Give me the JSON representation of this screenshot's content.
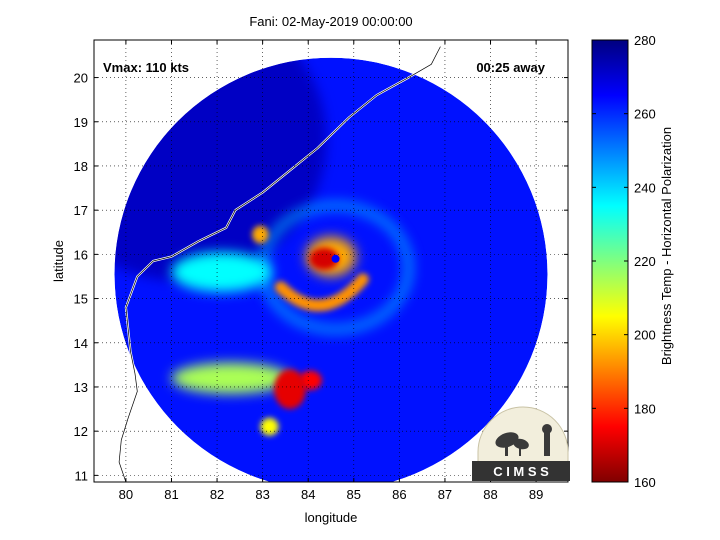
{
  "chart_data": {
    "type": "heatmap",
    "title": "Fani: 02-May-2019 00:00:00",
    "xlabel": "longitude",
    "ylabel": "latitude",
    "xlim": [
      79.3,
      89.7
    ],
    "ylim": [
      10.85,
      20.85
    ],
    "x_ticks": [
      80,
      81,
      82,
      83,
      84,
      85,
      86,
      87,
      88,
      89
    ],
    "y_ticks": [
      11,
      12,
      13,
      14,
      15,
      16,
      17,
      18,
      19,
      20
    ],
    "grid": true,
    "annotations": {
      "vmax": "Vmax: 110 kts",
      "time_away": "00:25 away"
    },
    "colorbar": {
      "label": "Brightness Temp - Horizontal Polarization",
      "range": [
        160,
        280
      ],
      "ticks": [
        160,
        180,
        200,
        220,
        240,
        260,
        280
      ]
    },
    "storm_center": {
      "lon": 84.6,
      "lat": 15.9
    },
    "swath": {
      "center_lon": 84.5,
      "center_lat": 15.55,
      "radius_deg": 4.75
    },
    "coastline": [
      [
        80.0,
        10.85
      ],
      [
        79.85,
        11.3
      ],
      [
        79.9,
        11.8
      ],
      [
        80.05,
        12.3
      ],
      [
        80.25,
        12.9
      ],
      [
        80.2,
        13.3
      ],
      [
        80.1,
        13.8
      ],
      [
        80.05,
        14.3
      ],
      [
        80.0,
        14.8
      ],
      [
        80.25,
        15.5
      ],
      [
        80.6,
        15.85
      ],
      [
        81.0,
        15.95
      ],
      [
        81.6,
        16.3
      ],
      [
        82.2,
        16.6
      ],
      [
        82.4,
        17.0
      ],
      [
        83.0,
        17.4
      ],
      [
        83.6,
        17.9
      ],
      [
        84.2,
        18.4
      ],
      [
        84.9,
        19.1
      ],
      [
        85.5,
        19.6
      ],
      [
        86.2,
        20.0
      ],
      [
        86.7,
        20.3
      ],
      [
        86.9,
        20.7
      ]
    ],
    "cold_features": [
      {
        "name": "eyewall",
        "lon": 84.5,
        "lat": 15.95,
        "rx": 0.55,
        "ry": 0.45,
        "temp": 195
      },
      {
        "name": "eyewall-core",
        "lon": 84.35,
        "lat": 15.9,
        "rx": 0.32,
        "ry": 0.25,
        "temp": 170
      },
      {
        "name": "inner-band",
        "lon": 84.3,
        "lat": 14.85,
        "rx": 0.9,
        "ry": 0.2,
        "temp": 192
      },
      {
        "name": "south-convection",
        "lon": 83.6,
        "lat": 12.95,
        "rx": 0.35,
        "ry": 0.45,
        "temp": 172
      },
      {
        "name": "south-convection-2",
        "lon": 84.05,
        "lat": 13.15,
        "rx": 0.25,
        "ry": 0.22,
        "temp": 175
      },
      {
        "name": "south-band",
        "lon": 82.3,
        "lat": 13.2,
        "rx": 1.3,
        "ry": 0.35,
        "temp": 215
      },
      {
        "name": "south-spot",
        "lon": 83.15,
        "lat": 12.1,
        "rx": 0.2,
        "ry": 0.2,
        "temp": 205
      },
      {
        "name": "north-spot",
        "lon": 82.95,
        "lat": 16.45,
        "rx": 0.18,
        "ry": 0.2,
        "temp": 195
      },
      {
        "name": "west-band",
        "lon": 82.1,
        "lat": 15.6,
        "rx": 1.1,
        "ry": 0.45,
        "temp": 235
      },
      {
        "name": "outer-ring",
        "lon": 84.6,
        "lat": 15.7,
        "rx": 1.6,
        "ry": 1.4,
        "temp": 245
      }
    ]
  },
  "logo": {
    "text": "C I M S S"
  }
}
